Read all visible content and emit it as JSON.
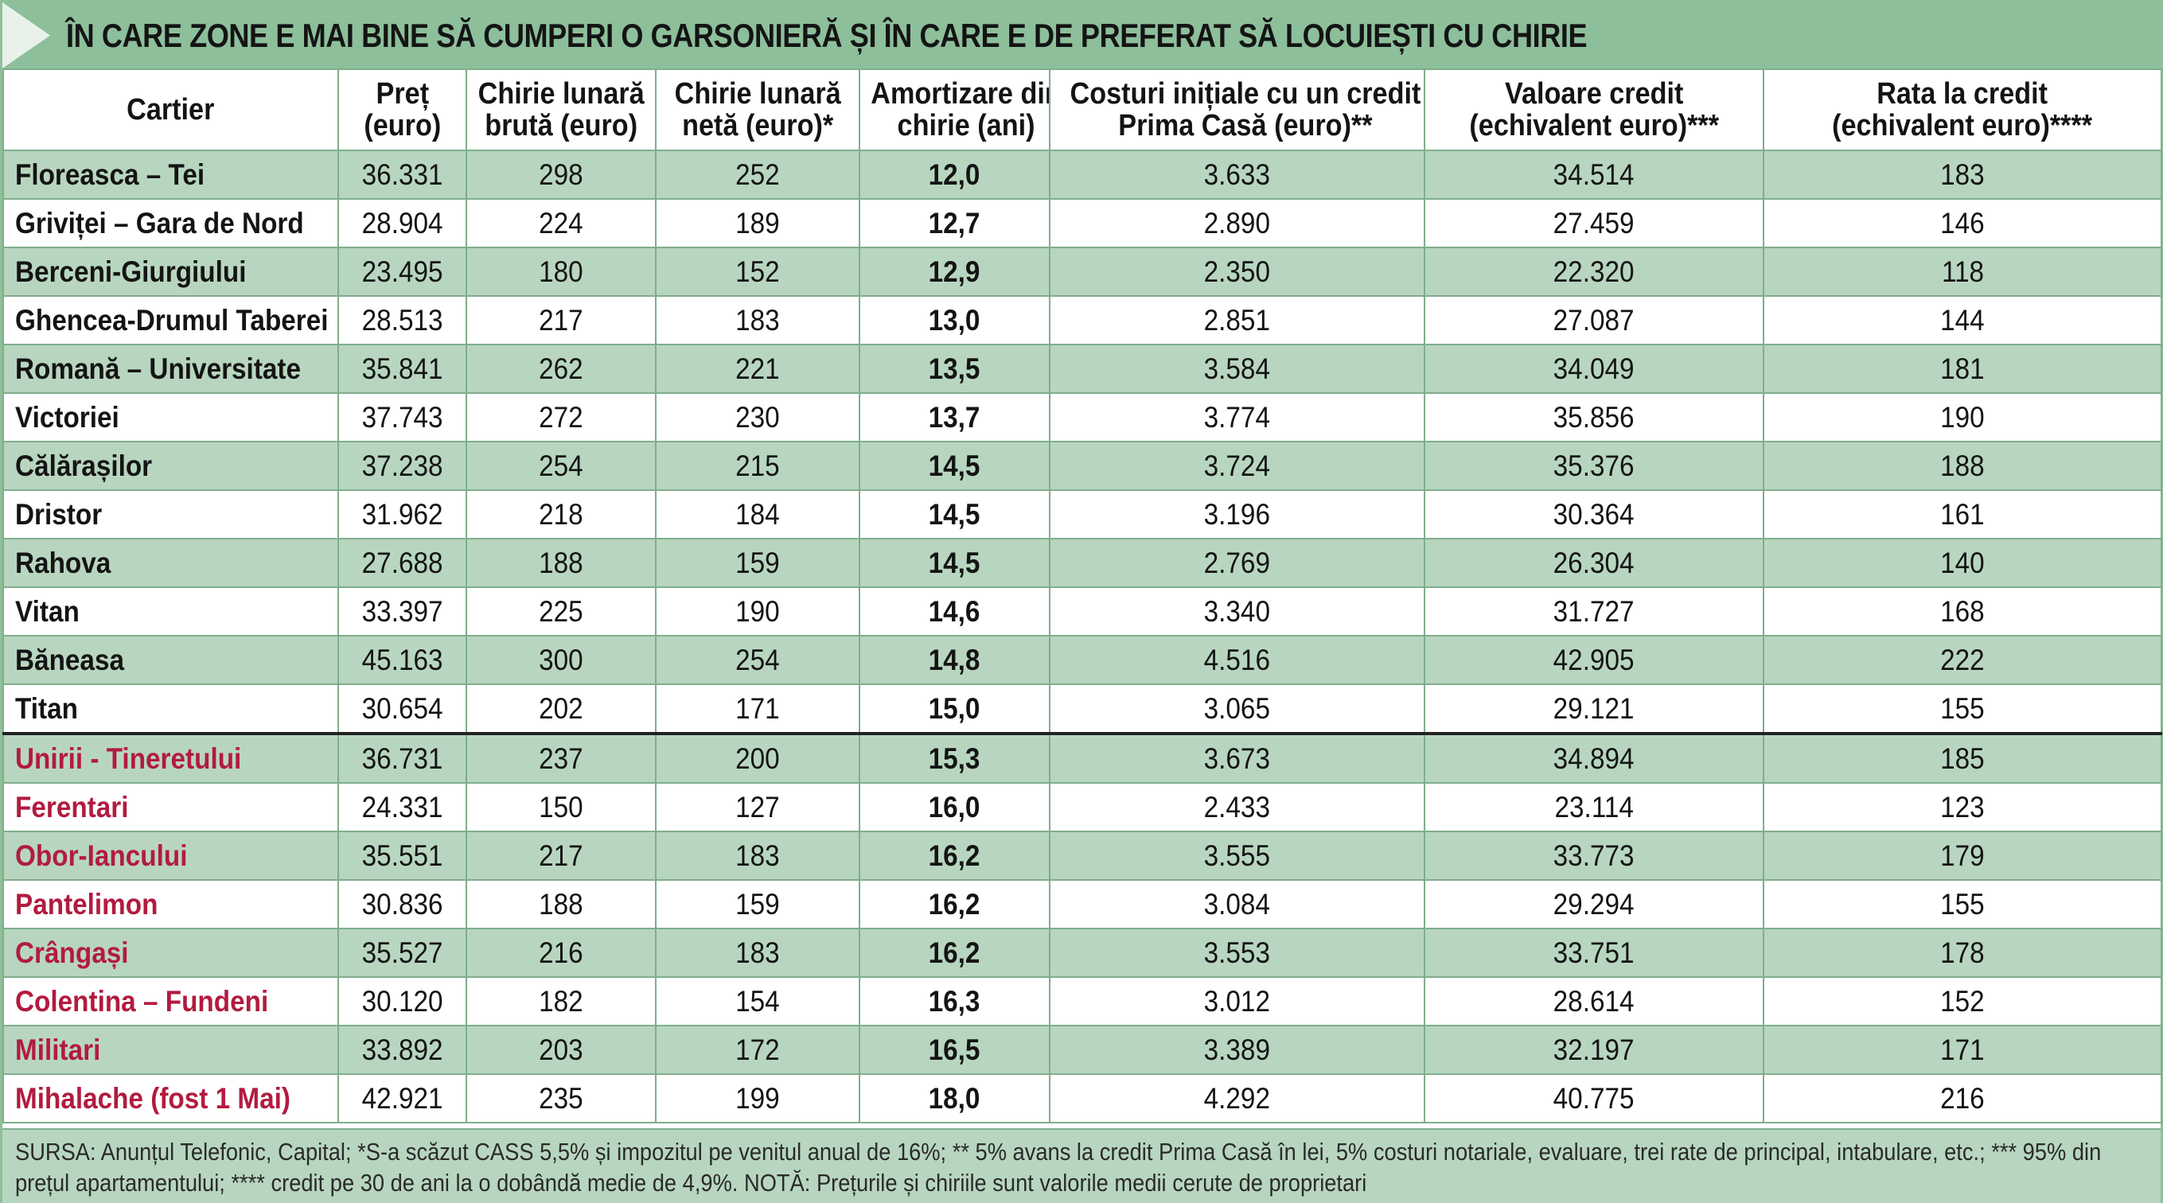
{
  "title": "ÎN CARE ZONE E MAI BINE SĂ CUMPERI O GARSONIERĂ ȘI ÎN CARE E DE PREFERAT SĂ LOCUIEȘTI CU CHIRIE",
  "colors": {
    "header_green": "#8dbf9b",
    "row_green": "#b8d6bf",
    "red_text": "#b21b3f",
    "border": "#7fae8c"
  },
  "columns": [
    {
      "line1": "Cartier",
      "line2": ""
    },
    {
      "line1": "Preț",
      "line2": "(euro)"
    },
    {
      "line1": "Chirie lunară",
      "line2": "brută (euro)"
    },
    {
      "line1": "Chirie lunară",
      "line2": "netă (euro)*"
    },
    {
      "line1": "Amortizare din",
      "line2": "chirie (ani)"
    },
    {
      "line1": "Costuri inițiale cu un credit",
      "line2": "Prima Casă (euro)**"
    },
    {
      "line1": "Valoare credit",
      "line2": "(echivalent euro)***"
    },
    {
      "line1": "Rata la credit",
      "line2": "(echivalent euro)****"
    }
  ],
  "rows": [
    [
      "Floreasca – Tei",
      "36.331",
      "298",
      "252",
      "12,0",
      "3.633",
      "34.514",
      "183"
    ],
    [
      "Griviței – Gara de Nord",
      "28.904",
      "224",
      "189",
      "12,7",
      "2.890",
      "27.459",
      "146"
    ],
    [
      "Berceni-Giurgiului",
      "23.495",
      "180",
      "152",
      "12,9",
      "2.350",
      "22.320",
      "118"
    ],
    [
      "Ghencea-Drumul Taberei",
      "28.513",
      "217",
      "183",
      "13,0",
      "2.851",
      "27.087",
      "144"
    ],
    [
      "Romană – Universitate",
      "35.841",
      "262",
      "221",
      "13,5",
      "3.584",
      "34.049",
      "181"
    ],
    [
      "Victoriei",
      "37.743",
      "272",
      "230",
      "13,7",
      "3.774",
      "35.856",
      "190"
    ],
    [
      "Călărașilor",
      "37.238",
      "254",
      "215",
      "14,5",
      "3.724",
      "35.376",
      "188"
    ],
    [
      "Dristor",
      "31.962",
      "218",
      "184",
      "14,5",
      "3.196",
      "30.364",
      "161"
    ],
    [
      "Rahova",
      "27.688",
      "188",
      "159",
      "14,5",
      "2.769",
      "26.304",
      "140"
    ],
    [
      "Vitan",
      "33.397",
      "225",
      "190",
      "14,6",
      "3.340",
      "31.727",
      "168"
    ],
    [
      "Băneasa",
      "45.163",
      "300",
      "254",
      "14,8",
      "4.516",
      "42.905",
      "222"
    ],
    [
      "Titan",
      "30.654",
      "202",
      "171",
      "15,0",
      "3.065",
      "29.121",
      "155"
    ],
    [
      "Unirii - Tineretului",
      "36.731",
      "237",
      "200",
      "15,3",
      "3.673",
      "34.894",
      "185"
    ],
    [
      "Ferentari",
      "24.331",
      "150",
      "127",
      "16,0",
      "2.433",
      "23.114",
      "123"
    ],
    [
      "Obor-Iancului",
      "35.551",
      "217",
      "183",
      "16,2",
      "3.555",
      "33.773",
      "179"
    ],
    [
      "Pantelimon",
      "30.836",
      "188",
      "159",
      "16,2",
      "3.084",
      "29.294",
      "155"
    ],
    [
      "Crângași",
      "35.527",
      "216",
      "183",
      "16,2",
      "3.553",
      "33.751",
      "178"
    ],
    [
      "Colentina – Fundeni",
      "30.120",
      "182",
      "154",
      "16,3",
      "3.012",
      "28.614",
      "152"
    ],
    [
      "Militari",
      "33.892",
      "203",
      "172",
      "16,5",
      "3.389",
      "32.197",
      "171"
    ],
    [
      "Mihalache (fost 1 Mai)",
      "42.921",
      "235",
      "199",
      "18,0",
      "4.292",
      "40.775",
      "216"
    ]
  ],
  "footnote": "SURSA: Anunțul Telefonic, Capital; *S-a scăzut CASS 5,5% și impozitul pe venitul anual de 16%; ** 5% avans la credit Prima Casă în lei, 5% costuri notariale, evaluare, trei rate de principal, intabulare, etc.; *** 95% din prețul apartamentului; **** credit pe 30 de ani la o dobândă medie de 4,9%. NOTĂ: Prețurile și chiriile sunt valorile medii cerute de proprietari"
}
